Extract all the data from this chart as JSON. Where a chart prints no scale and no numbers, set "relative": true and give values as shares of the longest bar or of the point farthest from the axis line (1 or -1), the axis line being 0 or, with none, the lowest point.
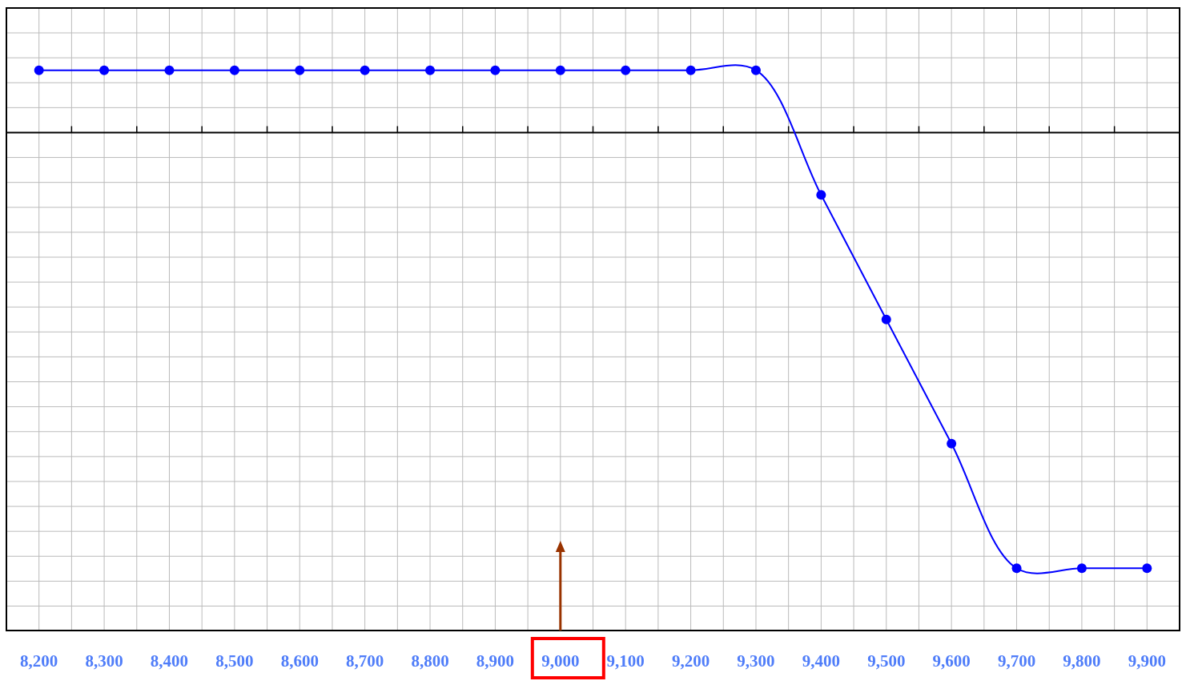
{
  "chart_data": {
    "type": "line",
    "relative": true,
    "x": [
      8200,
      8300,
      8400,
      8500,
      8600,
      8700,
      8800,
      8900,
      9000,
      9100,
      9200,
      9300,
      9400,
      9500,
      9600,
      9700,
      9800,
      9900
    ],
    "xlim": [
      8150,
      9950
    ],
    "xticks": [
      {
        "value": 8200,
        "label": "8,200"
      },
      {
        "value": 8300,
        "label": "8,300"
      },
      {
        "value": 8400,
        "label": "8,400"
      },
      {
        "value": 8500,
        "label": "8,500"
      },
      {
        "value": 8600,
        "label": "8,600"
      },
      {
        "value": 8700,
        "label": "8,700"
      },
      {
        "value": 8800,
        "label": "8,800"
      },
      {
        "value": 8900,
        "label": "8,900"
      },
      {
        "value": 9000,
        "label": "9,000"
      },
      {
        "value": 9100,
        "label": "9,100"
      },
      {
        "value": 9200,
        "label": "9,200"
      },
      {
        "value": 9300,
        "label": "9,300"
      },
      {
        "value": 9400,
        "label": "9,400"
      },
      {
        "value": 9500,
        "label": "9,500"
      },
      {
        "value": 9600,
        "label": "9,600"
      },
      {
        "value": 9700,
        "label": "9,700"
      },
      {
        "value": 9800,
        "label": "9,800"
      },
      {
        "value": 9900,
        "label": "9,900"
      }
    ],
    "series": [
      {
        "color": "#0000ff",
        "values": [
          0.143,
          0.143,
          0.143,
          0.143,
          0.143,
          0.143,
          0.143,
          0.143,
          0.143,
          0.143,
          0.143,
          0.143,
          -0.143,
          -0.429,
          -0.714,
          -1,
          -1,
          -1
        ]
      }
    ],
    "marker": "circle",
    "line_style": "solid",
    "grid": true
  }
}
